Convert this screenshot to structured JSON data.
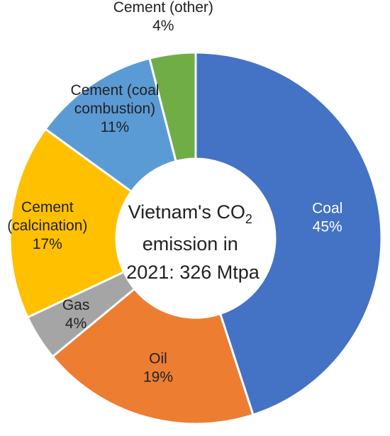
{
  "chart_data": {
    "type": "pie",
    "style": "donut",
    "unit": "%",
    "center_text": {
      "line1_prefix": "Vietnam's CO",
      "line1_subscript": "2",
      "line2": "emission in",
      "line3": "2021: 326 Mtpa"
    },
    "slices": [
      {
        "label": "Coal",
        "lines": [
          "Coal"
        ],
        "display": "45%",
        "value": 45,
        "color": "#4472C4",
        "text_color": "#ffffff"
      },
      {
        "label": "Oil",
        "lines": [
          "Oil"
        ],
        "display": "19%",
        "value": 19,
        "color": "#ED7D31",
        "text_color": "#222222"
      },
      {
        "label": "Gas",
        "lines": [
          "Gas"
        ],
        "display": "4%",
        "value": 4,
        "color": "#A5A5A5",
        "text_color": "#222222"
      },
      {
        "label": "Cement (calcination)",
        "lines": [
          "Cement",
          "(calcination)"
        ],
        "display": "17%",
        "value": 17,
        "color": "#FFC000",
        "text_color": "#222222"
      },
      {
        "label": "Cement (coal combustion)",
        "lines": [
          "Cement (coal",
          "combustion)"
        ],
        "display": "11%",
        "value": 11,
        "color": "#5B9BD5",
        "text_color": "#222222"
      },
      {
        "label": "Cement (other)",
        "lines": [
          "Cement (other)"
        ],
        "display": "4%",
        "value": 4,
        "color": "#70AD47",
        "text_color": "#222222"
      }
    ]
  }
}
